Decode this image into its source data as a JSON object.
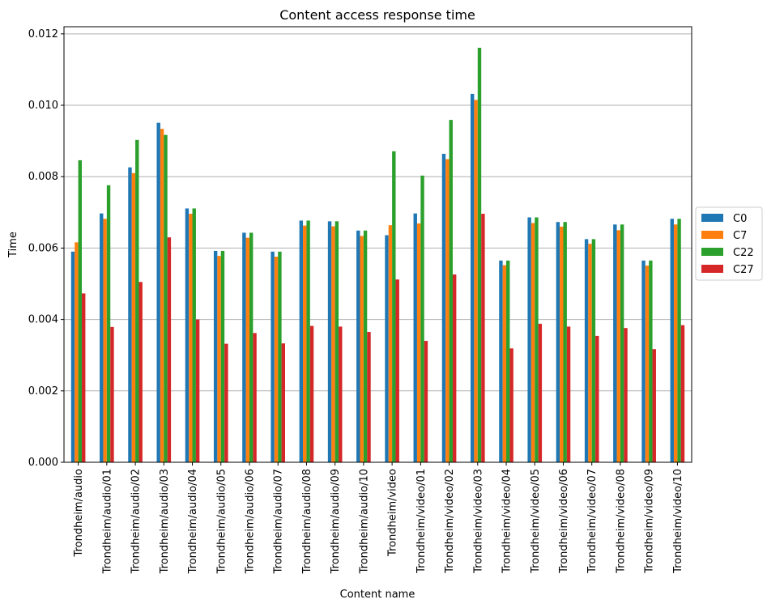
{
  "chart_data": {
    "type": "bar",
    "title": "Content access response time",
    "xlabel": "Content name",
    "ylabel": "Time",
    "ylim": [
      0,
      0.0122
    ],
    "yticks": [
      0.0,
      0.002,
      0.004,
      0.006,
      0.008,
      0.01,
      0.012
    ],
    "ytick_labels": [
      "0.000",
      "0.002",
      "0.004",
      "0.006",
      "0.008",
      "0.010",
      "0.012"
    ],
    "grid": "horizontal",
    "legend_position": "right",
    "categories": [
      "Trondheim/audio",
      "Trondheim/audio/01",
      "Trondheim/audio/02",
      "Trondheim/audio/03",
      "Trondheim/audio/04",
      "Trondheim/audio/05",
      "Trondheim/audio/06",
      "Trondheim/audio/07",
      "Trondheim/audio/08",
      "Trondheim/audio/09",
      "Trondheim/audio/10",
      "Trondheim/video",
      "Trondheim/video/01",
      "Trondheim/video/02",
      "Trondheim/video/03",
      "Trondheim/video/04",
      "Trondheim/video/05",
      "Trondheim/video/06",
      "Trondheim/video/07",
      "Trondheim/video/08",
      "Trondheim/video/09",
      "Trondheim/video/10"
    ],
    "series": [
      {
        "name": "C0",
        "color": "#1f77b4",
        "values": [
          0.0059,
          0.00697,
          0.00826,
          0.00951,
          0.00711,
          0.00592,
          0.00643,
          0.0059,
          0.00677,
          0.00675,
          0.00649,
          0.00636,
          0.00697,
          0.00864,
          0.01032,
          0.00565,
          0.00686,
          0.00673,
          0.00625,
          0.00666,
          0.00565,
          0.00682
        ]
      },
      {
        "name": "C7",
        "color": "#ff7f0e",
        "values": [
          0.00616,
          0.00682,
          0.0081,
          0.00934,
          0.00696,
          0.00578,
          0.00629,
          0.00576,
          0.00663,
          0.00661,
          0.00634,
          0.00664,
          0.00669,
          0.00849,
          0.01015,
          0.00552,
          0.0067,
          0.0066,
          0.00612,
          0.0065,
          0.00551,
          0.00666
        ]
      },
      {
        "name": "C22",
        "color": "#2ca02c",
        "values": [
          0.00846,
          0.00776,
          0.00903,
          0.00917,
          0.00711,
          0.00592,
          0.00643,
          0.0059,
          0.00677,
          0.00675,
          0.00649,
          0.00871,
          0.00803,
          0.00959,
          0.01161,
          0.00565,
          0.00686,
          0.00673,
          0.00625,
          0.00666,
          0.00565,
          0.00682
        ]
      },
      {
        "name": "C27",
        "color": "#d62728",
        "values": [
          0.00473,
          0.00379,
          0.00505,
          0.0063,
          0.004,
          0.00332,
          0.00362,
          0.00333,
          0.00382,
          0.0038,
          0.00365,
          0.00512,
          0.0034,
          0.00526,
          0.00696,
          0.00319,
          0.00388,
          0.0038,
          0.00354,
          0.00376,
          0.00317,
          0.00384
        ]
      }
    ]
  }
}
